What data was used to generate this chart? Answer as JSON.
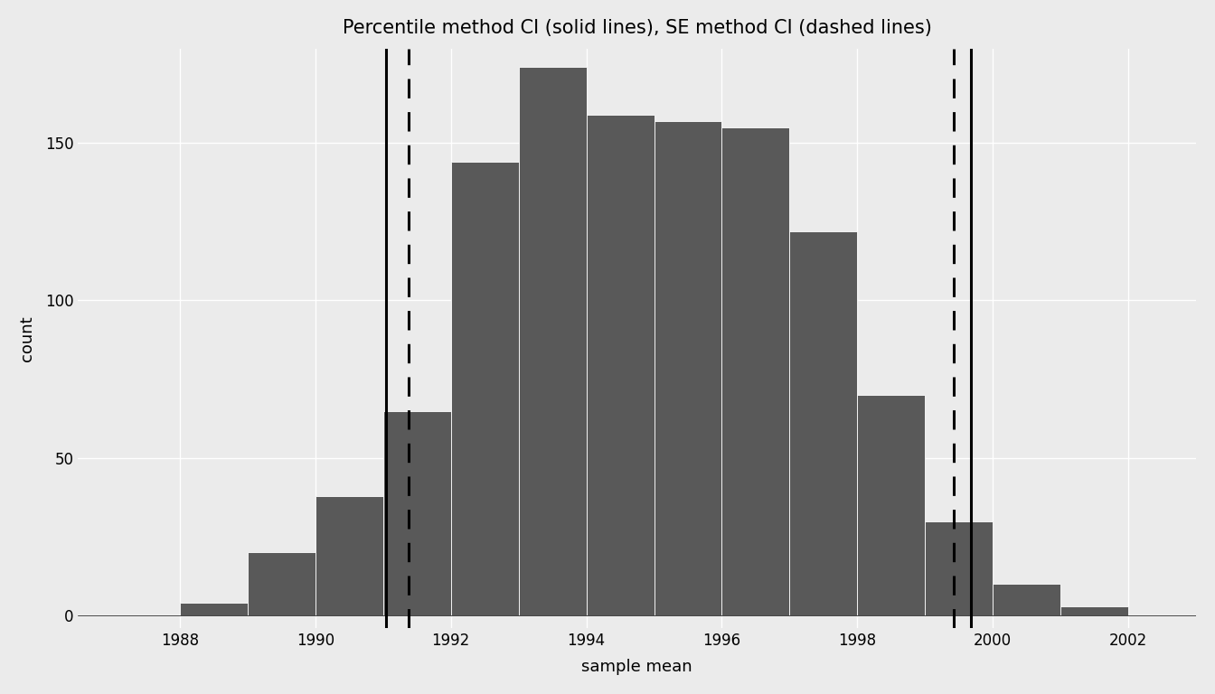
{
  "title": "Percentile method CI (solid lines), SE method CI (dashed lines)",
  "xlabel": "sample mean",
  "ylabel": "count",
  "plot_bg_color": "#EBEBEB",
  "outer_bg_color": "#EBEBEB",
  "bar_color": "#595959",
  "bar_edges": [
    1987,
    1988,
    1989,
    1990,
    1991,
    1992,
    1993,
    1994,
    1995,
    1996,
    1997,
    1998,
    1999,
    2000,
    2001,
    2002,
    2003
  ],
  "bar_counts": [
    0,
    4,
    20,
    38,
    65,
    144,
    174,
    159,
    157,
    155,
    122,
    70,
    30,
    10,
    3,
    0
  ],
  "percentile_ci_lower": 1991.05,
  "percentile_ci_upper": 1999.68,
  "se_ci_lower": 1991.38,
  "se_ci_upper": 1999.42,
  "xlim": [
    1986.5,
    2003.0
  ],
  "ylim": [
    -4,
    180
  ],
  "xticks": [
    1988,
    1990,
    1992,
    1994,
    1996,
    1998,
    2000,
    2002
  ],
  "yticks": [
    0,
    50,
    100,
    150
  ],
  "title_fontsize": 15,
  "axis_label_fontsize": 13,
  "tick_fontsize": 12,
  "vline_solid_lw": 2.2,
  "vline_dashed_lw": 2.2,
  "grid_color": "#FFFFFF",
  "grid_lw": 1.0
}
